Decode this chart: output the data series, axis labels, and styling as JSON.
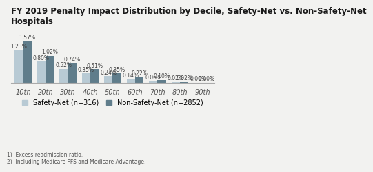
{
  "title_line1": "FY 2019 Penalty Impact Distribution by Decile, Safety-Net vs. Non-Safety-Net",
  "title_line2": "Hospitals",
  "categories": [
    "10th",
    "20th",
    "30th",
    "40th",
    "50th",
    "60th",
    "70th",
    "80th",
    "90th"
  ],
  "safety_net": [
    1.23,
    0.8,
    0.52,
    0.35,
    0.24,
    0.14,
    0.06,
    0.02,
    0.0
  ],
  "non_safety_net": [
    1.57,
    1.02,
    0.74,
    0.51,
    0.35,
    0.22,
    0.1,
    0.02,
    0.0
  ],
  "safety_net_color": "#b8cad4",
  "non_safety_net_color": "#607d8b",
  "background_color": "#f2f2f0",
  "legend_safety_net": "Safety-Net (n=316)",
  "legend_non_safety_net": "Non-Safety-Net (n=2852)",
  "footnote1": "1)  Excess readmission ratio.",
  "footnote2": "2)  Including Medicare FFS and Medicare Advantage.",
  "bar_width": 0.38,
  "ylim": [
    0,
    1.85
  ],
  "title_fontsize": 8.5,
  "tick_fontsize": 7,
  "label_fontsize": 5.5,
  "legend_fontsize": 7,
  "footnote_fontsize": 5.5
}
